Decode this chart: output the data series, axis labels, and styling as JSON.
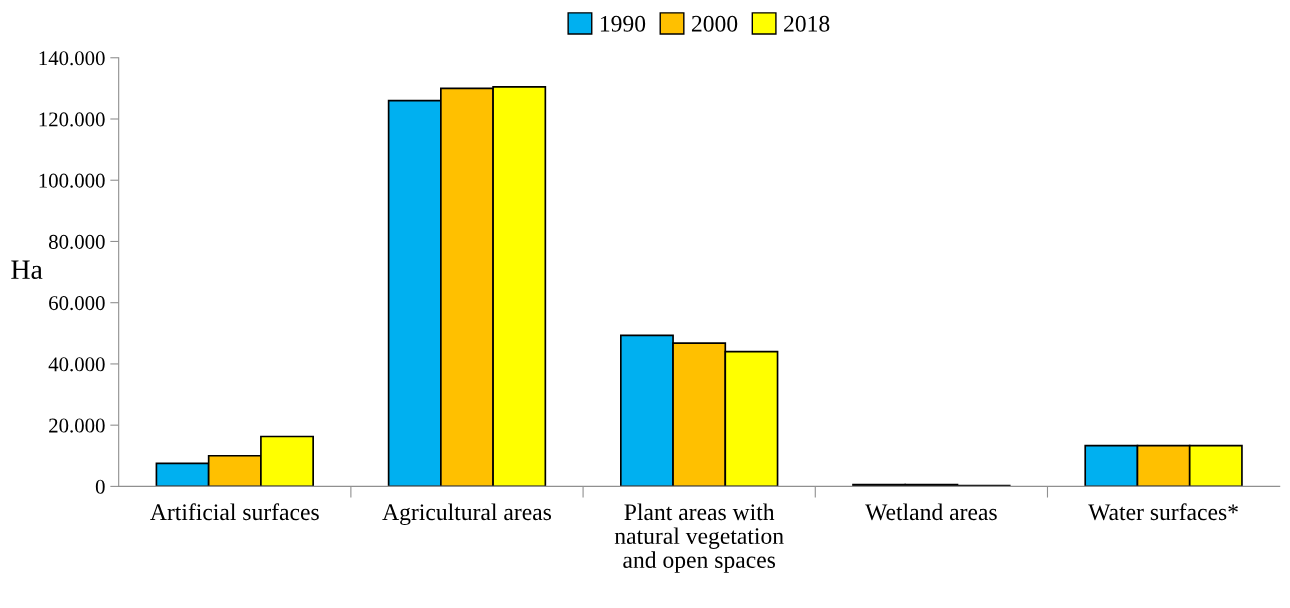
{
  "chart_data": {
    "type": "bar",
    "categories": [
      "Artificial surfaces",
      "Agricultural areas",
      "Plant areas with\nnatural vegetation\nand open spaces",
      "Wetland areas",
      "Water surfaces*"
    ],
    "series": [
      {
        "name": "1990",
        "color": "#00b0f0",
        "values": [
          7500,
          126000,
          49300,
          600,
          13300
        ]
      },
      {
        "name": "2000",
        "color": "#ffc000",
        "values": [
          10000,
          130000,
          46800,
          600,
          13300
        ]
      },
      {
        "name": "2018",
        "color": "#ffff00",
        "values": [
          16300,
          130500,
          44000,
          300,
          13300
        ]
      }
    ],
    "ylabel": "Ha",
    "ylim": [
      0,
      140000
    ],
    "yticks": [
      {
        "value": 0,
        "label": "0"
      },
      {
        "value": 20000,
        "label": "20.000"
      },
      {
        "value": 40000,
        "label": "40.000"
      },
      {
        "value": 60000,
        "label": "60.000"
      },
      {
        "value": 80000,
        "label": "80.000"
      },
      {
        "value": 100000,
        "label": "100.000"
      },
      {
        "value": 120000,
        "label": "120.000"
      },
      {
        "value": 140000,
        "label": "140.000"
      }
    ],
    "grid": false,
    "legend": "top"
  }
}
